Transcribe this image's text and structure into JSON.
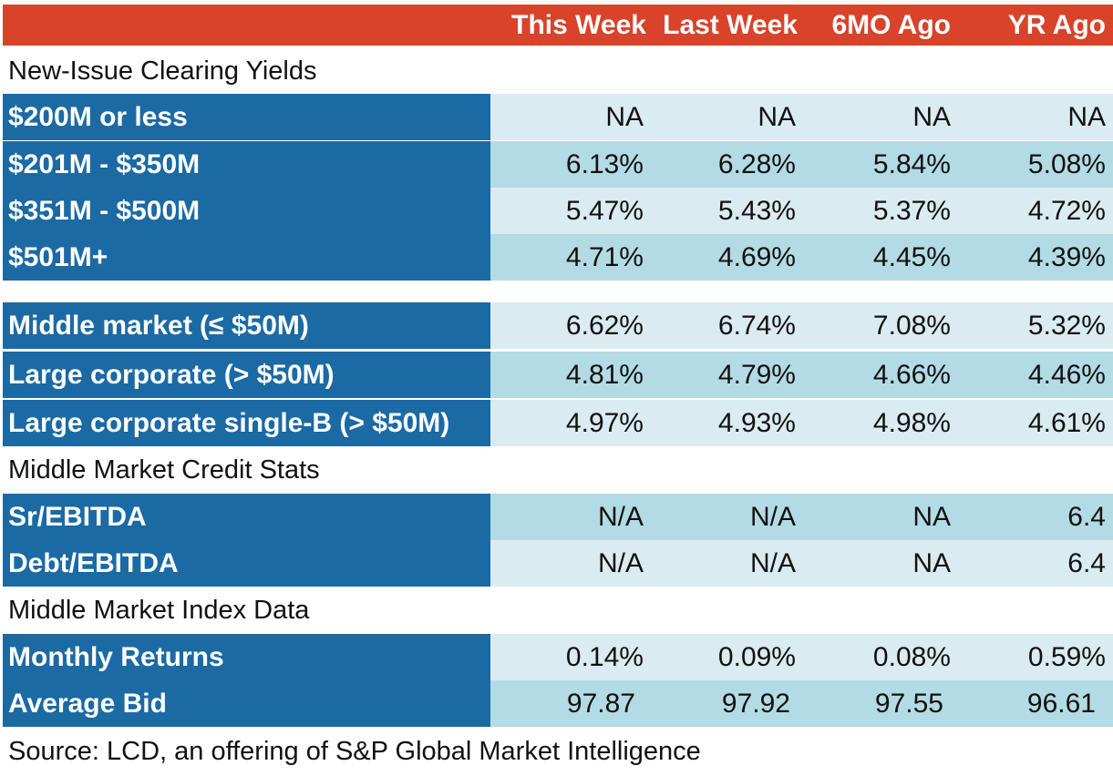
{
  "header": {
    "columns": [
      "This Week",
      "Last Week",
      "6MO Ago",
      "YR Ago"
    ]
  },
  "sections": {
    "new_issue_title": "New-Issue Clearing Yields",
    "credit_stats_title": "Middle Market Credit Stats",
    "index_data_title": "Middle Market Index Data"
  },
  "rows": {
    "r200m": {
      "label": "$200M or less",
      "values": [
        "NA",
        "NA",
        "NA",
        "NA"
      ]
    },
    "r201m": {
      "label": "$201M - $350M",
      "values": [
        "6.13%",
        "6.28%",
        "5.84%",
        "5.08%"
      ]
    },
    "r351m": {
      "label": "$351M - $500M",
      "values": [
        "5.47%",
        "5.43%",
        "5.37%",
        "4.72%"
      ]
    },
    "r501m": {
      "label": "$501M+",
      "values": [
        "4.71%",
        "4.69%",
        "4.45%",
        "4.39%"
      ]
    },
    "middle_market": {
      "label": "Middle market (≤ $50M)",
      "values": [
        "6.62%",
        "6.74%",
        "7.08%",
        "5.32%"
      ]
    },
    "large_corp": {
      "label": "Large corporate (> $50M)",
      "values": [
        "4.81%",
        "4.79%",
        "4.66%",
        "4.46%"
      ]
    },
    "large_corp_b": {
      "label": "Large corporate single-B (> $50M)",
      "values": [
        "4.97%",
        "4.93%",
        "4.98%",
        "4.61%"
      ]
    },
    "sr_ebitda": {
      "label": "Sr/EBITDA",
      "values": [
        "N/A",
        "N/A",
        "NA",
        "6.4"
      ]
    },
    "debt_ebitda": {
      "label": "Debt/EBITDA",
      "values": [
        "N/A",
        "N/A",
        "NA",
        "6.4"
      ]
    },
    "monthly_returns": {
      "label": "Monthly Returns",
      "values": [
        "0.14%",
        "0.09%",
        "0.08%",
        "0.59%"
      ]
    },
    "average_bid": {
      "label": "Average Bid",
      "values": [
        "97.87",
        "97.92",
        "97.55",
        "96.61"
      ]
    }
  },
  "source": "Source: LCD, an offering of S&P Global Market Intelligence",
  "colors": {
    "header_bg": "#d8432a",
    "label_bg": "#1b6aa4",
    "value_bg_light": "#daecf2",
    "value_bg_dark": "#b3dbe5"
  }
}
